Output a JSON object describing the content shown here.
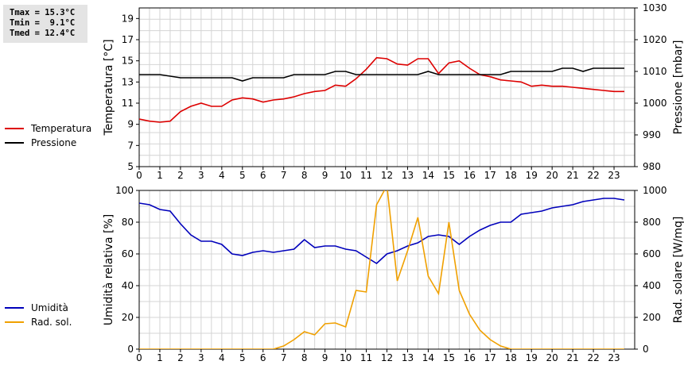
{
  "stats": [
    "Tmax = 15.3°C",
    "Tmin =  9.1°C",
    "Tmed = 12.4°C"
  ],
  "chart_data": [
    {
      "type": "line",
      "x_ticks": [
        0,
        1,
        2,
        3,
        4,
        5,
        6,
        7,
        8,
        9,
        10,
        11,
        12,
        13,
        14,
        15,
        16,
        17,
        18,
        19,
        20,
        21,
        22,
        23
      ],
      "xlim": [
        0,
        24
      ],
      "ylabel": "Temperatura [°C]",
      "ylabel_right": "Pressione [mbar]",
      "ylim": [
        5,
        20
      ],
      "yticks": [
        5,
        7,
        9,
        11,
        13,
        15,
        17,
        19
      ],
      "ylim_right": [
        980,
        1030
      ],
      "yticks_right": [
        980,
        990,
        1000,
        1010,
        1020,
        1030
      ],
      "grid": true,
      "legend_placement": "left",
      "series": [
        {
          "name": "Temperatura",
          "color": "#dd0000",
          "axis": "left",
          "x": [
            0,
            0.5,
            1,
            1.5,
            2,
            2.5,
            3,
            3.5,
            4,
            4.5,
            5,
            5.5,
            6,
            6.5,
            7,
            7.5,
            8,
            8.5,
            9,
            9.5,
            10,
            10.5,
            11,
            11.5,
            12,
            12.5,
            13,
            13.5,
            14,
            14.5,
            15,
            15.5,
            16,
            16.5,
            17,
            17.5,
            18,
            18.5,
            19,
            19.5,
            20,
            20.5,
            21,
            21.5,
            22,
            22.5,
            23,
            23.5
          ],
          "y": [
            9.5,
            9.3,
            9.2,
            9.3,
            10.2,
            10.7,
            11.0,
            10.7,
            10.7,
            11.3,
            11.5,
            11.4,
            11.1,
            11.3,
            11.4,
            11.6,
            11.9,
            12.1,
            12.2,
            12.7,
            12.6,
            13.3,
            14.2,
            15.3,
            15.2,
            14.7,
            14.6,
            15.2,
            15.2,
            13.8,
            14.8,
            15.0,
            14.3,
            13.7,
            13.5,
            13.2,
            13.1,
            13.0,
            12.6,
            12.7,
            12.6,
            12.6,
            12.5,
            12.4,
            12.3,
            12.2,
            12.1,
            12.1
          ]
        },
        {
          "name": "Pressione",
          "color": "#000000",
          "axis": "right",
          "x": [
            0,
            1,
            2,
            3,
            4,
            4.5,
            5,
            5.5,
            6,
            6.5,
            7,
            7.5,
            8,
            8.5,
            9,
            9.5,
            10,
            10.5,
            11,
            11.5,
            12,
            12.5,
            13,
            13.5,
            14,
            14.5,
            15,
            15.5,
            16,
            16.5,
            17,
            17.5,
            18,
            18.5,
            19,
            19.5,
            20,
            20.5,
            21,
            21.5,
            22,
            22.5,
            23,
            23.5
          ],
          "y": [
            1009,
            1009,
            1008,
            1008,
            1008,
            1008,
            1007,
            1008,
            1008,
            1008,
            1008,
            1009,
            1009,
            1009,
            1009,
            1010,
            1010,
            1009,
            1009,
            1009,
            1009,
            1009,
            1009,
            1009,
            1010,
            1009,
            1009,
            1009,
            1009,
            1009,
            1009,
            1009,
            1010,
            1010,
            1010,
            1010,
            1010,
            1011,
            1011,
            1010,
            1011,
            1011,
            1011,
            1011
          ]
        }
      ]
    },
    {
      "type": "line",
      "x_ticks": [
        0,
        1,
        2,
        3,
        4,
        5,
        6,
        7,
        8,
        9,
        10,
        11,
        12,
        13,
        14,
        15,
        16,
        17,
        18,
        19,
        20,
        21,
        22,
        23
      ],
      "xlim": [
        0,
        24
      ],
      "ylabel": "Umidità relativa [%]",
      "ylabel_right": "Rad. solare [W/mq]",
      "ylim": [
        0,
        100
      ],
      "yticks": [
        0,
        20,
        40,
        60,
        80,
        100
      ],
      "ylim_right": [
        0,
        1000
      ],
      "yticks_right": [
        0,
        200,
        400,
        600,
        800,
        1000
      ],
      "grid": true,
      "legend_placement": "left",
      "series": [
        {
          "name": "Umidità",
          "color": "#0000bb",
          "axis": "left",
          "x": [
            0,
            0.5,
            1,
            1.5,
            2,
            2.5,
            3,
            3.5,
            4,
            4.5,
            5,
            5.5,
            6,
            6.5,
            7,
            7.5,
            8,
            8.5,
            9,
            9.5,
            10,
            10.5,
            11,
            11.5,
            12,
            12.5,
            13,
            13.5,
            14,
            14.5,
            15,
            15.5,
            16,
            16.5,
            17,
            17.5,
            18,
            18.5,
            19,
            19.5,
            20,
            20.5,
            21,
            21.5,
            22,
            22.5,
            23,
            23.5
          ],
          "y": [
            92,
            91,
            88,
            87,
            79,
            72,
            68,
            68,
            66,
            60,
            59,
            61,
            62,
            61,
            62,
            63,
            69,
            64,
            65,
            65,
            63,
            62,
            58,
            54,
            60,
            62,
            65,
            67,
            71,
            72,
            71,
            66,
            71,
            75,
            78,
            80,
            80,
            85,
            86,
            87,
            89,
            90,
            91,
            93,
            94,
            95,
            95,
            94
          ]
        },
        {
          "name": "Rad. sol.",
          "color": "#f0a000",
          "axis": "right",
          "x": [
            0,
            0.5,
            1,
            1.5,
            2,
            2.5,
            3,
            3.5,
            4,
            4.5,
            5,
            5.5,
            6,
            6.5,
            7,
            7.5,
            8,
            8.5,
            9,
            9.5,
            10,
            10.5,
            11,
            11.5,
            12,
            12.5,
            13,
            13.5,
            14,
            14.5,
            15,
            15.5,
            16,
            16.5,
            17,
            17.5,
            18,
            18.5,
            19,
            19.5,
            20,
            20.5,
            21,
            21.5,
            22,
            22.5,
            23,
            23.5
          ],
          "y": [
            0,
            0,
            0,
            0,
            0,
            0,
            0,
            0,
            0,
            0,
            0,
            0,
            0,
            0,
            20,
            60,
            110,
            90,
            160,
            165,
            140,
            370,
            360,
            910,
            1030,
            430,
            620,
            830,
            460,
            350,
            800,
            370,
            220,
            120,
            60,
            20,
            0,
            0,
            0,
            0,
            0,
            0,
            0,
            0,
            0,
            0,
            0,
            0
          ]
        }
      ]
    }
  ]
}
